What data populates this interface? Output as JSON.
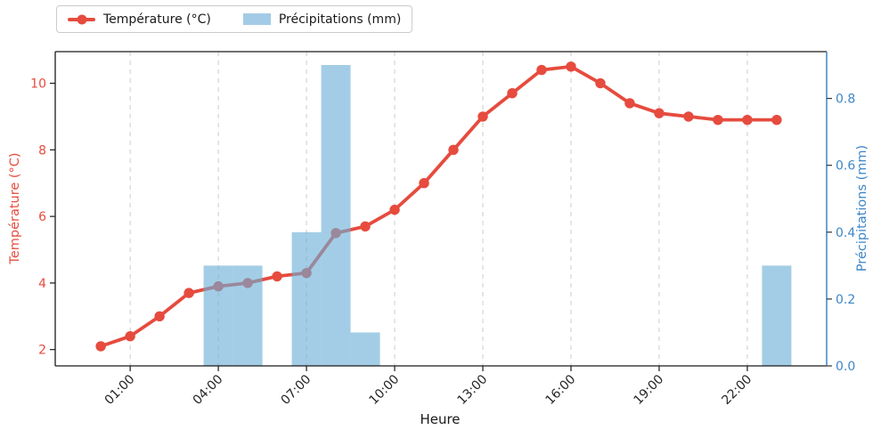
{
  "figure": {
    "background": "#ffffff"
  },
  "legend": {
    "entries": [
      {
        "label": "Température (°C)",
        "marker": "line-dot",
        "color": "#e64b3e"
      },
      {
        "label": "Précipitations (mm)",
        "marker": "swatch",
        "color": "#a3cbe7"
      }
    ]
  },
  "chart_data": {
    "type": "combo",
    "categories": [
      "00:00",
      "01:00",
      "02:00",
      "03:00",
      "04:00",
      "05:00",
      "06:00",
      "07:00",
      "08:00",
      "09:00",
      "10:00",
      "11:00",
      "12:00",
      "13:00",
      "14:00",
      "15:00",
      "16:00",
      "17:00",
      "18:00",
      "19:00",
      "20:00",
      "21:00",
      "22:00",
      "23:00"
    ],
    "series": [
      {
        "name": "Température (°C)",
        "type": "line",
        "axis": "left",
        "color": "#e64b3e",
        "values": [
          2.1,
          2.4,
          3.0,
          3.7,
          3.9,
          4.0,
          4.2,
          4.3,
          5.5,
          5.7,
          6.2,
          7.0,
          8.0,
          9.0,
          9.7,
          10.4,
          10.5,
          10.0,
          9.4,
          9.1,
          9.0,
          8.9,
          8.9,
          8.9
        ]
      },
      {
        "name": "Précipitations (mm)",
        "type": "bar",
        "axis": "right",
        "color": "#6baed6",
        "opacity": 0.62,
        "values": [
          0,
          0,
          0,
          0,
          0.3,
          0.3,
          0,
          0.4,
          0.9,
          0.1,
          0,
          0,
          0,
          0,
          0,
          0,
          0,
          0,
          0,
          0,
          0,
          0,
          0,
          0.3
        ]
      }
    ],
    "title": "",
    "xlabel": "Heure",
    "ylabel_left": "Température (°C)",
    "ylabel_right": "Précipitations (mm)",
    "x_ticks": [
      {
        "hour": 1,
        "label": "01:00"
      },
      {
        "hour": 4,
        "label": "04:00"
      },
      {
        "hour": 7,
        "label": "07:00"
      },
      {
        "hour": 10,
        "label": "10:00"
      },
      {
        "hour": 13,
        "label": "13:00"
      },
      {
        "hour": 16,
        "label": "16:00"
      },
      {
        "hour": 19,
        "label": "19:00"
      },
      {
        "hour": 22,
        "label": "22:00"
      }
    ],
    "y_ticks_left": [
      {
        "v": 2,
        "label": "2"
      },
      {
        "v": 4,
        "label": "4"
      },
      {
        "v": 6,
        "label": "6"
      },
      {
        "v": 8,
        "label": "8"
      },
      {
        "v": 10,
        "label": "10"
      }
    ],
    "y_ticks_right": [
      {
        "v": 0.0,
        "label": "0.0"
      },
      {
        "v": 0.2,
        "label": "0.2"
      },
      {
        "v": 0.4,
        "label": "0.4"
      },
      {
        "v": 0.6,
        "label": "0.6"
      },
      {
        "v": 0.8,
        "label": "0.8"
      }
    ],
    "xlim": [
      -1.55,
      24.7
    ],
    "ylim_left": [
      1.51,
      10.95
    ],
    "ylim_right": [
      0,
      0.94
    ],
    "grid": {
      "axis": "x",
      "style": "dashed",
      "color": "#cccccc"
    },
    "axis_colors": {
      "left": "#e64b3e",
      "right": "#3e86c6",
      "x_tick_text": "#262626",
      "spine": "#1a1a1a"
    },
    "legend_position": "upper-left"
  }
}
